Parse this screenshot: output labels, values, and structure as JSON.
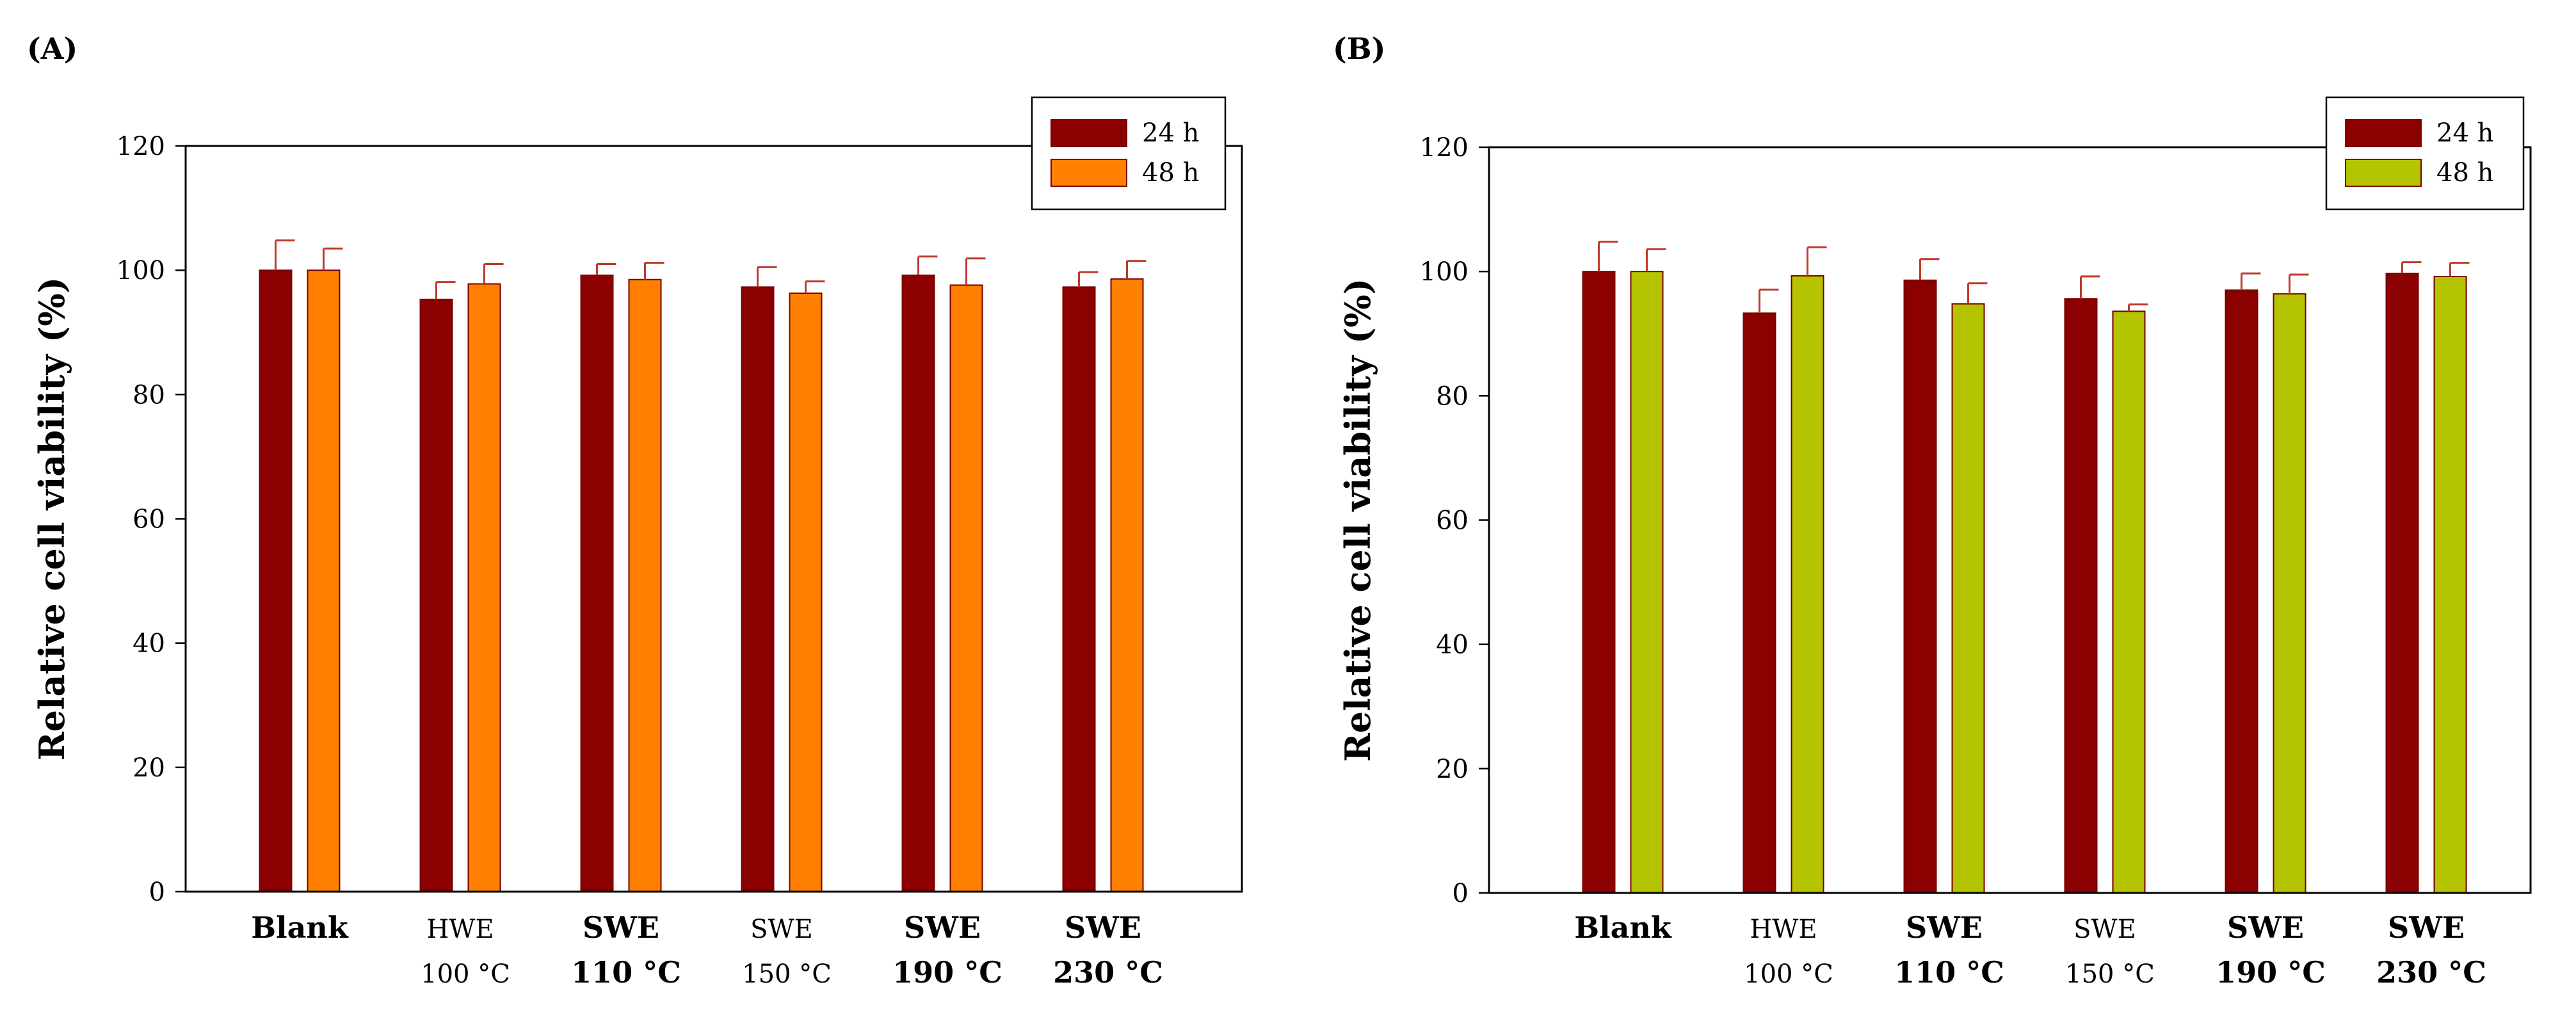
{
  "chart_data": [
    {
      "type": "bar",
      "panel_label": "(A)",
      "ylabel": "Relative cell viability (%)",
      "ylim": [
        0,
        120
      ],
      "yticks": [
        0,
        20,
        40,
        60,
        80,
        100,
        120
      ],
      "categories": [
        {
          "line1": "Blank",
          "line2": "",
          "bold1": true,
          "bold2": false
        },
        {
          "line1": "HWE",
          "line2": "100 °C",
          "bold1": false,
          "bold2": false
        },
        {
          "line1": "SWE",
          "line2": "110 °C",
          "bold1": true,
          "bold2": true
        },
        {
          "line1": "SWE",
          "line2": "150 °C",
          "bold1": false,
          "bold2": false
        },
        {
          "line1": "SWE",
          "line2": "190 °C",
          "bold1": true,
          "bold2": true
        },
        {
          "line1": "SWE",
          "line2": "230 °C",
          "bold1": true,
          "bold2": true
        }
      ],
      "series": [
        {
          "name": "24 h",
          "color": "#8b0000",
          "values": [
            100,
            95.3,
            99.2,
            97.3,
            99.2,
            97.3
          ],
          "errors": [
            4.8,
            2.8,
            1.8,
            3.2,
            3.0,
            2.4
          ]
        },
        {
          "name": "48 h",
          "color": "#ff7f00",
          "values": [
            100,
            97.8,
            98.5,
            96.3,
            97.6,
            98.6
          ],
          "errors": [
            3.5,
            3.2,
            2.7,
            1.9,
            4.3,
            2.9
          ]
        }
      ],
      "legend": "top-right",
      "grid": false
    },
    {
      "type": "bar",
      "panel_label": "(B)",
      "ylabel": "Relative cell viability (%)",
      "ylim": [
        0,
        120
      ],
      "yticks": [
        0,
        20,
        40,
        60,
        80,
        100,
        120
      ],
      "categories": [
        {
          "line1": "Blank",
          "line2": "",
          "bold1": true,
          "bold2": false
        },
        {
          "line1": "HWE",
          "line2": "100 °C",
          "bold1": false,
          "bold2": false
        },
        {
          "line1": "SWE",
          "line2": "110 °C",
          "bold1": true,
          "bold2": true
        },
        {
          "line1": "SWE",
          "line2": "150 °C",
          "bold1": false,
          "bold2": false
        },
        {
          "line1": "SWE",
          "line2": "190 °C",
          "bold1": true,
          "bold2": true
        },
        {
          "line1": "SWE",
          "line2": "230 °C",
          "bold1": true,
          "bold2": true
        }
      ],
      "series": [
        {
          "name": "24 h",
          "color": "#8b0000",
          "values": [
            100,
            93.3,
            98.6,
            95.6,
            97.0,
            99.7
          ],
          "errors": [
            4.8,
            3.8,
            3.4,
            3.6,
            2.7,
            1.8
          ]
        },
        {
          "name": "48 h",
          "color": "#b5c400",
          "values": [
            100,
            99.3,
            94.8,
            93.6,
            96.4,
            99.2
          ],
          "errors": [
            3.6,
            4.6,
            3.3,
            1.1,
            3.1,
            2.2
          ]
        }
      ],
      "legend": "top-right",
      "grid": false
    }
  ]
}
